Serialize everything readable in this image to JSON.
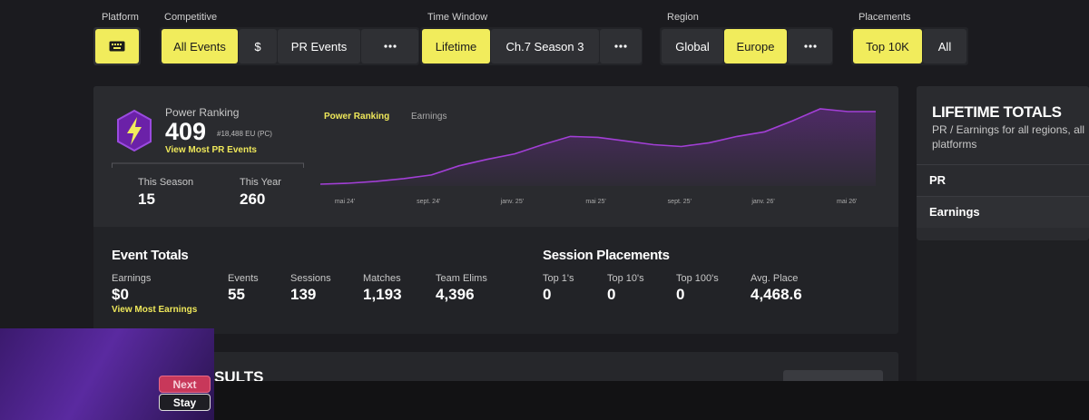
{
  "filters": {
    "platform": {
      "label": "Platform",
      "selected": true
    },
    "groups": [
      {
        "label": "Competitive",
        "options": [
          {
            "text": "All Events",
            "selected": true
          },
          {
            "text": "$",
            "selected": false
          },
          {
            "text": "PR Events",
            "selected": false
          }
        ],
        "more": true
      },
      {
        "label": "Time Window",
        "options": [
          {
            "text": "Lifetime",
            "selected": true
          },
          {
            "text": "Ch.7 Season 3",
            "selected": false
          }
        ],
        "more": true
      },
      {
        "label": "Region",
        "options": [
          {
            "text": "Global",
            "selected": false
          },
          {
            "text": "Europe",
            "selected": true
          }
        ],
        "more": true
      },
      {
        "label": "Placements",
        "options": [
          {
            "text": "Top 10K",
            "selected": true
          },
          {
            "text": "All",
            "selected": false
          }
        ],
        "more": false
      }
    ]
  },
  "power_ranking": {
    "label": "Power Ranking",
    "value": 409,
    "rank": "#18,488 EU (PC)",
    "link": "View Most PR Events",
    "stats": [
      {
        "label": "This Season",
        "value": 15
      },
      {
        "label": "This Year",
        "value": 260
      }
    ]
  },
  "pr_chart": {
    "tabs": [
      {
        "text": "Power Ranking",
        "active": true
      },
      {
        "text": "Earnings",
        "active": false
      }
    ],
    "x_labels": [
      "mai 24'",
      "sept. 24'",
      "janv. 25'",
      "mai 25'",
      "sept. 25'",
      "janv. 26'",
      "mai 26'"
    ],
    "values": [
      2,
      3,
      5,
      8,
      12,
      22,
      29,
      35,
      45,
      54,
      53,
      49,
      45,
      43,
      47,
      54,
      59,
      71,
      84,
      81,
      81
    ]
  },
  "event_totals": {
    "title": "Event Totals",
    "link": "View Most Earnings",
    "stats": [
      {
        "label": "Earnings",
        "value": "$0"
      },
      {
        "label": "Events",
        "value": 55
      },
      {
        "label": "Sessions",
        "value": 139
      },
      {
        "label": "Matches",
        "value": "1,193"
      },
      {
        "label": "Team Elims",
        "value": "4,396"
      }
    ]
  },
  "session_placements": {
    "title": "Session Placements",
    "stats": [
      {
        "label": "Top 1's",
        "value": 0
      },
      {
        "label": "Top 10's",
        "value": 0
      },
      {
        "label": "Top 100's",
        "value": 0
      },
      {
        "label": "Avg. Place",
        "value": "4,468.6"
      }
    ]
  },
  "lifetime_totals": {
    "title": "LIFETIME TOTALS",
    "subtitle": "PR / Earnings for all regions, all platforms",
    "rows": [
      "PR",
      "Earnings"
    ]
  },
  "results": {
    "title": "SULTS"
  },
  "popup": {
    "buttons": [
      "Next",
      "Stay"
    ]
  }
}
